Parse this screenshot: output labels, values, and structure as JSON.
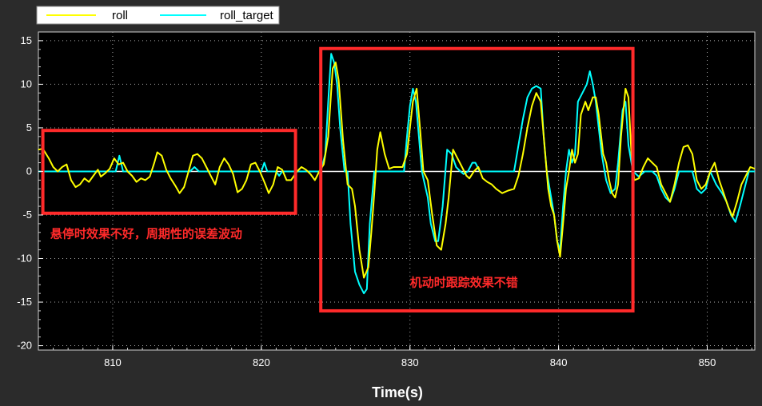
{
  "chart_data": {
    "type": "line",
    "xlabel": "Time(s)",
    "ylabel": "",
    "xlim": [
      805,
      853.2
    ],
    "ylim": [
      -20.5,
      16
    ],
    "xticks": [
      810,
      820,
      830,
      840,
      850
    ],
    "yticks": [
      15,
      10,
      5,
      0,
      -5,
      -10,
      -15,
      -20
    ],
    "grid": true,
    "legend_position": "top-left",
    "series": [
      {
        "name": "roll",
        "color": "#ffff00",
        "points": [
          [
            805.0,
            2.5
          ],
          [
            805.3,
            2.6
          ],
          [
            805.7,
            1.5
          ],
          [
            806.0,
            0.5
          ],
          [
            806.3,
            0.0
          ],
          [
            806.6,
            0.5
          ],
          [
            806.9,
            0.8
          ],
          [
            807.2,
            -1.0
          ],
          [
            807.5,
            -1.8
          ],
          [
            807.8,
            -1.5
          ],
          [
            808.1,
            -0.8
          ],
          [
            808.4,
            -1.2
          ],
          [
            808.7,
            -0.5
          ],
          [
            809.0,
            0.2
          ],
          [
            809.2,
            -0.6
          ],
          [
            809.5,
            -0.2
          ],
          [
            809.8,
            0.3
          ],
          [
            810.1,
            1.5
          ],
          [
            810.4,
            0.8
          ],
          [
            810.7,
            1.0
          ],
          [
            811.0,
            0.0
          ],
          [
            811.3,
            -0.5
          ],
          [
            811.6,
            -1.2
          ],
          [
            811.9,
            -0.8
          ],
          [
            812.2,
            -1.0
          ],
          [
            812.5,
            -0.6
          ],
          [
            812.8,
            1.0
          ],
          [
            813.0,
            2.2
          ],
          [
            813.3,
            1.8
          ],
          [
            813.6,
            0.2
          ],
          [
            813.9,
            -0.8
          ],
          [
            814.2,
            -1.6
          ],
          [
            814.5,
            -2.5
          ],
          [
            814.8,
            -1.8
          ],
          [
            815.1,
            0.0
          ],
          [
            815.4,
            1.8
          ],
          [
            815.7,
            2.0
          ],
          [
            816.0,
            1.5
          ],
          [
            816.3,
            0.5
          ],
          [
            816.6,
            -0.5
          ],
          [
            816.9,
            -1.5
          ],
          [
            817.2,
            0.5
          ],
          [
            817.5,
            1.5
          ],
          [
            817.8,
            0.8
          ],
          [
            818.1,
            -0.3
          ],
          [
            818.4,
            -2.4
          ],
          [
            818.7,
            -2.0
          ],
          [
            819.0,
            -1.0
          ],
          [
            819.3,
            0.8
          ],
          [
            819.6,
            1.0
          ],
          [
            819.9,
            0.0
          ],
          [
            820.2,
            -1.2
          ],
          [
            820.5,
            -2.5
          ],
          [
            820.8,
            -1.5
          ],
          [
            821.1,
            0.5
          ],
          [
            821.4,
            0.2
          ],
          [
            821.7,
            -1.0
          ],
          [
            822.0,
            -1.0
          ],
          [
            822.4,
            0.0
          ],
          [
            822.7,
            0.5
          ],
          [
            823.0,
            0.2
          ],
          [
            823.3,
            -0.3
          ],
          [
            823.6,
            -1.0
          ],
          [
            823.9,
            0.0
          ],
          [
            824.2,
            0.8
          ],
          [
            824.5,
            4.0
          ],
          [
            824.8,
            11.8
          ],
          [
            825.0,
            12.5
          ],
          [
            825.2,
            10.5
          ],
          [
            825.5,
            3.5
          ],
          [
            825.8,
            -1.5
          ],
          [
            826.1,
            -2.0
          ],
          [
            826.3,
            -4.0
          ],
          [
            826.6,
            -9.0
          ],
          [
            826.9,
            -12.2
          ],
          [
            827.2,
            -11.0
          ],
          [
            827.4,
            -7.0
          ],
          [
            827.6,
            -2.5
          ],
          [
            827.8,
            2.5
          ],
          [
            828.0,
            4.5
          ],
          [
            828.3,
            2.0
          ],
          [
            828.6,
            0.3
          ],
          [
            828.9,
            0.5
          ],
          [
            829.2,
            0.5
          ],
          [
            829.5,
            0.5
          ],
          [
            829.8,
            2.0
          ],
          [
            830.0,
            5.0
          ],
          [
            830.2,
            8.0
          ],
          [
            830.45,
            9.5
          ],
          [
            830.7,
            4.5
          ],
          [
            830.9,
            0.0
          ],
          [
            831.2,
            -1.0
          ],
          [
            831.5,
            -5.0
          ],
          [
            831.8,
            -8.5
          ],
          [
            832.1,
            -9.0
          ],
          [
            832.4,
            -6.0
          ],
          [
            832.6,
            -3.0
          ],
          [
            832.9,
            2.5
          ],
          [
            833.2,
            1.5
          ],
          [
            833.5,
            0.5
          ],
          [
            833.8,
            -0.5
          ],
          [
            834.0,
            -0.8
          ],
          [
            834.3,
            0.0
          ],
          [
            834.6,
            0.5
          ],
          [
            834.9,
            -0.8
          ],
          [
            835.2,
            -1.2
          ],
          [
            835.5,
            -1.5
          ],
          [
            835.8,
            -2.0
          ],
          [
            836.2,
            -2.5
          ],
          [
            836.6,
            -2.2
          ],
          [
            837.0,
            -2.0
          ],
          [
            837.3,
            -0.5
          ],
          [
            837.6,
            2.0
          ],
          [
            837.9,
            5.0
          ],
          [
            838.2,
            7.5
          ],
          [
            838.5,
            9.0
          ],
          [
            838.8,
            8.0
          ],
          [
            839.1,
            2.0
          ],
          [
            839.3,
            -2.0
          ],
          [
            839.5,
            -4.0
          ],
          [
            839.7,
            -5.0
          ],
          [
            839.9,
            -8.0
          ],
          [
            840.1,
            -9.8
          ],
          [
            840.3,
            -6.0
          ],
          [
            840.5,
            -2.0
          ],
          [
            840.7,
            0.0
          ],
          [
            840.9,
            2.5
          ],
          [
            841.1,
            1.0
          ],
          [
            841.3,
            2.0
          ],
          [
            841.5,
            6.5
          ],
          [
            841.8,
            8.0
          ],
          [
            842.0,
            7.0
          ],
          [
            842.3,
            8.5
          ],
          [
            842.5,
            8.5
          ],
          [
            842.7,
            6.5
          ],
          [
            843.0,
            2.0
          ],
          [
            843.2,
            1.0
          ],
          [
            843.4,
            -1.0
          ],
          [
            843.6,
            -2.5
          ],
          [
            843.8,
            -3.0
          ],
          [
            844.0,
            -1.5
          ],
          [
            844.2,
            4.0
          ],
          [
            844.5,
            9.5
          ],
          [
            844.7,
            8.5
          ],
          [
            844.9,
            2.0
          ],
          [
            845.1,
            -1.0
          ],
          [
            845.4,
            -0.8
          ],
          [
            845.7,
            0.5
          ],
          [
            846.0,
            1.5
          ],
          [
            846.3,
            1.0
          ],
          [
            846.6,
            0.5
          ],
          [
            846.9,
            -1.5
          ],
          [
            847.2,
            -2.5
          ],
          [
            847.5,
            -3.5
          ],
          [
            847.8,
            -1.5
          ],
          [
            848.1,
            1.0
          ],
          [
            848.4,
            2.8
          ],
          [
            848.7,
            3.0
          ],
          [
            849.0,
            2.0
          ],
          [
            849.3,
            -1.0
          ],
          [
            849.6,
            -2.0
          ],
          [
            849.9,
            -1.5
          ],
          [
            850.2,
            0.0
          ],
          [
            850.5,
            1.0
          ],
          [
            850.8,
            -1.0
          ],
          [
            851.1,
            -2.5
          ],
          [
            851.4,
            -4.0
          ],
          [
            851.7,
            -5.2
          ],
          [
            852.0,
            -3.5
          ],
          [
            852.3,
            -1.5
          ],
          [
            852.6,
            -0.5
          ],
          [
            852.9,
            0.5
          ],
          [
            853.2,
            0.3
          ]
        ]
      },
      {
        "name": "roll_target",
        "color": "#00ffff",
        "points": [
          [
            805.0,
            0.0
          ],
          [
            810.2,
            0.0
          ],
          [
            810.45,
            1.8
          ],
          [
            810.7,
            0.0
          ],
          [
            813.0,
            0.0
          ],
          [
            815.2,
            0.0
          ],
          [
            815.5,
            0.5
          ],
          [
            815.8,
            0.0
          ],
          [
            819.0,
            0.0
          ],
          [
            820.0,
            0.0
          ],
          [
            820.2,
            1.0
          ],
          [
            820.4,
            0.0
          ],
          [
            821.0,
            0.0
          ],
          [
            821.2,
            -0.5
          ],
          [
            821.4,
            0.0
          ],
          [
            823.5,
            0.0
          ],
          [
            824.0,
            0.0
          ],
          [
            824.3,
            2.0
          ],
          [
            824.5,
            8.0
          ],
          [
            824.7,
            13.5
          ],
          [
            824.9,
            12.5
          ],
          [
            825.1,
            10.0
          ],
          [
            825.3,
            5.0
          ],
          [
            825.6,
            0.0
          ],
          [
            825.8,
            0.0
          ],
          [
            826.0,
            -6.0
          ],
          [
            826.3,
            -11.5
          ],
          [
            826.6,
            -13.0
          ],
          [
            826.9,
            -14.0
          ],
          [
            827.1,
            -13.5
          ],
          [
            827.3,
            -6.0
          ],
          [
            827.6,
            0.0
          ],
          [
            829.6,
            0.0
          ],
          [
            829.8,
            4.0
          ],
          [
            830.0,
            7.5
          ],
          [
            830.2,
            9.5
          ],
          [
            830.4,
            8.0
          ],
          [
            830.6,
            4.0
          ],
          [
            830.8,
            0.0
          ],
          [
            831.2,
            -3.0
          ],
          [
            831.4,
            -6.0
          ],
          [
            831.7,
            -8.0
          ],
          [
            831.9,
            -8.0
          ],
          [
            832.2,
            -4.0
          ],
          [
            832.5,
            2.5
          ],
          [
            832.8,
            2.0
          ],
          [
            833.1,
            0.5
          ],
          [
            833.4,
            0.0
          ],
          [
            833.6,
            -0.3
          ],
          [
            833.9,
            0.0
          ],
          [
            834.2,
            1.0
          ],
          [
            834.4,
            1.0
          ],
          [
            834.7,
            0.0
          ],
          [
            837.0,
            0.0
          ],
          [
            837.3,
            3.0
          ],
          [
            837.6,
            6.0
          ],
          [
            837.9,
            8.5
          ],
          [
            838.2,
            9.5
          ],
          [
            838.5,
            9.8
          ],
          [
            838.8,
            9.5
          ],
          [
            839.0,
            4.0
          ],
          [
            839.2,
            0.0
          ],
          [
            839.5,
            -3.0
          ],
          [
            839.7,
            -5.0
          ],
          [
            839.9,
            -8.0
          ],
          [
            840.1,
            -9.0
          ],
          [
            840.3,
            -4.0
          ],
          [
            840.5,
            0.0
          ],
          [
            840.7,
            2.5
          ],
          [
            840.9,
            1.0
          ],
          [
            841.1,
            2.0
          ],
          [
            841.3,
            8.0
          ],
          [
            841.6,
            9.0
          ],
          [
            841.9,
            10.0
          ],
          [
            842.1,
            11.5
          ],
          [
            842.3,
            10.0
          ],
          [
            842.5,
            8.0
          ],
          [
            842.7,
            5.0
          ],
          [
            842.9,
            2.0
          ],
          [
            843.2,
            -1.0
          ],
          [
            843.5,
            -2.5
          ],
          [
            843.8,
            -2.0
          ],
          [
            844.0,
            1.0
          ],
          [
            844.3,
            7.0
          ],
          [
            844.5,
            8.0
          ],
          [
            844.7,
            3.0
          ],
          [
            845.0,
            0.0
          ],
          [
            845.4,
            -0.6
          ],
          [
            845.8,
            0.0
          ],
          [
            846.3,
            0.0
          ],
          [
            846.6,
            -0.5
          ],
          [
            846.9,
            -2.0
          ],
          [
            847.2,
            -3.0
          ],
          [
            847.5,
            -3.5
          ],
          [
            847.8,
            -2.0
          ],
          [
            848.1,
            0.0
          ],
          [
            848.5,
            0.0
          ],
          [
            849.0,
            0.0
          ],
          [
            849.3,
            -2.0
          ],
          [
            849.6,
            -2.5
          ],
          [
            849.9,
            -2.0
          ],
          [
            850.2,
            0.0
          ],
          [
            850.6,
            -1.5
          ],
          [
            851.0,
            -2.5
          ],
          [
            851.3,
            -3.5
          ],
          [
            851.6,
            -5.0
          ],
          [
            851.9,
            -5.8
          ],
          [
            852.2,
            -4.0
          ],
          [
            852.5,
            -2.0
          ],
          [
            852.8,
            0.0
          ],
          [
            853.2,
            0.0
          ]
        ]
      }
    ],
    "annotations": [
      {
        "text": "悬停时效果不好，周期性的误差波动",
        "box_color": "#ff2a2a",
        "box": {
          "x0": 805.3,
          "x1": 822.3,
          "y0": -4.8,
          "y1": 4.7
        },
        "label": {
          "x": 805.8,
          "y": -7.6
        }
      },
      {
        "text": "机动时跟踪效果不错",
        "box_color": "#ff2a2a",
        "box": {
          "x0": 824.0,
          "x1": 845.0,
          "y0": -16.0,
          "y1": 14.1
        },
        "label": {
          "x": 830.0,
          "y": -13.2
        }
      }
    ],
    "colors": {
      "background": "#2b2b2b",
      "plot_background": "#000000",
      "grid": "#b0b0b0",
      "zero_line": "#ffffff"
    }
  }
}
